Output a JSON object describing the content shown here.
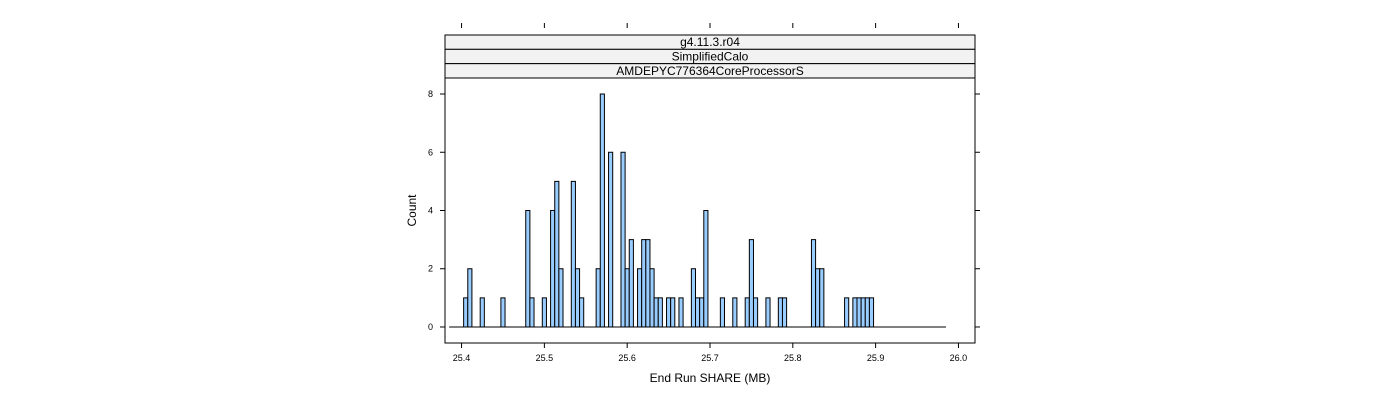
{
  "chart_data": {
    "type": "bar",
    "strips": [
      "g4.11.3.r04",
      "SimplifiedCalo",
      "AMDEPYC776364CoreProcessorS"
    ],
    "xlabel": "End Run SHARE (MB)",
    "ylabel": "Count",
    "xlim": [
      25.38,
      26.02
    ],
    "ylim": [
      -0.55,
      8.55
    ],
    "xticks": [
      "25.4",
      "25.5",
      "25.6",
      "25.7",
      "25.8",
      "25.9",
      "26.0"
    ],
    "yticks": [
      "0",
      "2",
      "4",
      "6",
      "8"
    ],
    "baseline_range": [
      25.385,
      25.985
    ],
    "bin_width": 0.005,
    "colors": {
      "bar_fill": "#99ccff",
      "bar_stroke": "#000000",
      "strip_bg": "#f2f2f2"
    },
    "bars": [
      {
        "x": 25.405,
        "y": 1
      },
      {
        "x": 25.41,
        "y": 2
      },
      {
        "x": 25.425,
        "y": 1
      },
      {
        "x": 25.45,
        "y": 1
      },
      {
        "x": 25.48,
        "y": 4
      },
      {
        "x": 25.485,
        "y": 1
      },
      {
        "x": 25.5,
        "y": 1
      },
      {
        "x": 25.51,
        "y": 4
      },
      {
        "x": 25.515,
        "y": 5
      },
      {
        "x": 25.52,
        "y": 2
      },
      {
        "x": 25.535,
        "y": 5
      },
      {
        "x": 25.54,
        "y": 2
      },
      {
        "x": 25.545,
        "y": 1
      },
      {
        "x": 25.565,
        "y": 2
      },
      {
        "x": 25.57,
        "y": 8
      },
      {
        "x": 25.58,
        "y": 6
      },
      {
        "x": 25.595,
        "y": 6
      },
      {
        "x": 25.6,
        "y": 2
      },
      {
        "x": 25.605,
        "y": 3
      },
      {
        "x": 25.615,
        "y": 2
      },
      {
        "x": 25.62,
        "y": 3
      },
      {
        "x": 25.625,
        "y": 3
      },
      {
        "x": 25.63,
        "y": 2
      },
      {
        "x": 25.635,
        "y": 1
      },
      {
        "x": 25.64,
        "y": 1
      },
      {
        "x": 25.65,
        "y": 1
      },
      {
        "x": 25.655,
        "y": 1
      },
      {
        "x": 25.665,
        "y": 1
      },
      {
        "x": 25.68,
        "y": 2
      },
      {
        "x": 25.685,
        "y": 1
      },
      {
        "x": 25.69,
        "y": 1
      },
      {
        "x": 25.695,
        "y": 4
      },
      {
        "x": 25.715,
        "y": 1
      },
      {
        "x": 25.73,
        "y": 1
      },
      {
        "x": 25.745,
        "y": 1
      },
      {
        "x": 25.75,
        "y": 3
      },
      {
        "x": 25.755,
        "y": 1
      },
      {
        "x": 25.77,
        "y": 1
      },
      {
        "x": 25.785,
        "y": 1
      },
      {
        "x": 25.79,
        "y": 1
      },
      {
        "x": 25.825,
        "y": 3
      },
      {
        "x": 25.83,
        "y": 2
      },
      {
        "x": 25.835,
        "y": 2
      },
      {
        "x": 25.865,
        "y": 1
      },
      {
        "x": 25.875,
        "y": 1
      },
      {
        "x": 25.88,
        "y": 1
      },
      {
        "x": 25.885,
        "y": 1
      },
      {
        "x": 25.89,
        "y": 1
      },
      {
        "x": 25.895,
        "y": 1
      }
    ]
  }
}
